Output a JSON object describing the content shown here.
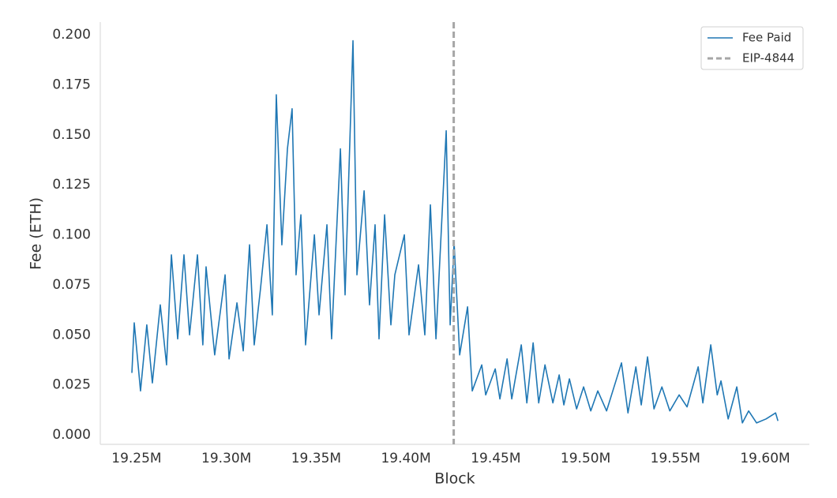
{
  "chart_data": {
    "type": "line",
    "xlabel": "Block",
    "ylabel": "Fee (ETH)",
    "x": [
      19247400,
      19248700,
      19252200,
      19255700,
      19258800,
      19263200,
      19266700,
      19269400,
      19272900,
      19276400,
      19279500,
      19283900,
      19286900,
      19288700,
      19293500,
      19299300,
      19301500,
      19305900,
      19309400,
      19312900,
      19315500,
      19319000,
      19322600,
      19325600,
      19327800,
      19330900,
      19334000,
      19336600,
      19338800,
      19341500,
      19344100,
      19349000,
      19351600,
      19356000,
      19358600,
      19363500,
      19366100,
      19370500,
      19372700,
      19376700,
      19379700,
      19382800,
      19385000,
      19388100,
      19391600,
      19393800,
      19399100,
      19401700,
      19407000,
      19410500,
      19413600,
      19416700,
      19422400,
      19424600,
      19426800,
      19429900,
      19434300,
      19436900,
      19442200,
      19444400,
      19449700,
      19452300,
      19456300,
      19458900,
      19464200,
      19467300,
      19470800,
      19473900,
      19477400,
      19481800,
      19485300,
      19487900,
      19491000,
      19495000,
      19498900,
      19502900,
      19506800,
      19511700,
      19520000,
      19523600,
      19528000,
      19531000,
      19534500,
      19538100,
      19542500,
      19546900,
      19552100,
      19556500,
      19562700,
      19565300,
      19569700,
      19573300,
      19575400,
      19579400,
      19584200,
      19587300,
      19590800,
      19595200,
      19600500,
      19605800,
      19607100
    ],
    "series": [
      {
        "name": "Fee Paid",
        "color": "#1f77b4",
        "values": [
          0.031,
          0.056,
          0.022,
          0.055,
          0.026,
          0.065,
          0.035,
          0.09,
          0.048,
          0.09,
          0.05,
          0.09,
          0.045,
          0.084,
          0.04,
          0.08,
          0.038,
          0.066,
          0.042,
          0.095,
          0.045,
          0.073,
          0.105,
          0.06,
          0.17,
          0.095,
          0.143,
          0.163,
          0.08,
          0.11,
          0.045,
          0.1,
          0.06,
          0.105,
          0.048,
          0.143,
          0.07,
          0.197,
          0.08,
          0.122,
          0.065,
          0.105,
          0.048,
          0.11,
          0.055,
          0.08,
          0.1,
          0.05,
          0.085,
          0.05,
          0.115,
          0.048,
          0.152,
          0.055,
          0.096,
          0.04,
          0.064,
          0.022,
          0.035,
          0.02,
          0.033,
          0.018,
          0.038,
          0.018,
          0.045,
          0.016,
          0.046,
          0.016,
          0.035,
          0.016,
          0.03,
          0.015,
          0.028,
          0.013,
          0.024,
          0.012,
          0.022,
          0.012,
          0.036,
          0.011,
          0.034,
          0.015,
          0.039,
          0.013,
          0.024,
          0.012,
          0.02,
          0.014,
          0.034,
          0.016,
          0.045,
          0.02,
          0.027,
          0.008,
          0.024,
          0.006,
          0.012,
          0.006,
          0.008,
          0.011,
          0.007
        ]
      }
    ],
    "vlines": [
      {
        "name": "EIP-4844",
        "x": 19426587,
        "color": "#a6a6a6"
      }
    ],
    "xlim": [
      19229800,
      19624600
    ],
    "ylim": [
      -0.0047,
      0.2063
    ],
    "xticks": [
      {
        "value": 19250000,
        "label": "19.25M"
      },
      {
        "value": 19300000,
        "label": "19.30M"
      },
      {
        "value": 19350000,
        "label": "19.35M"
      },
      {
        "value": 19400000,
        "label": "19.40M"
      },
      {
        "value": 19450000,
        "label": "19.45M"
      },
      {
        "value": 19500000,
        "label": "19.50M"
      },
      {
        "value": 19550000,
        "label": "19.55M"
      },
      {
        "value": 19600000,
        "label": "19.60M"
      }
    ],
    "yticks": [
      {
        "value": 0,
        "label": "0.000"
      },
      {
        "value": 0.025,
        "label": "0.025"
      },
      {
        "value": 0.05,
        "label": "0.050"
      },
      {
        "value": 0.075,
        "label": "0.075"
      },
      {
        "value": 0.1,
        "label": "0.100"
      },
      {
        "value": 0.125,
        "label": "0.125"
      },
      {
        "value": 0.15,
        "label": "0.150"
      },
      {
        "value": 0.175,
        "label": "0.175"
      },
      {
        "value": 0.2,
        "label": "0.200"
      }
    ],
    "grid": false,
    "legend": "upper right"
  }
}
